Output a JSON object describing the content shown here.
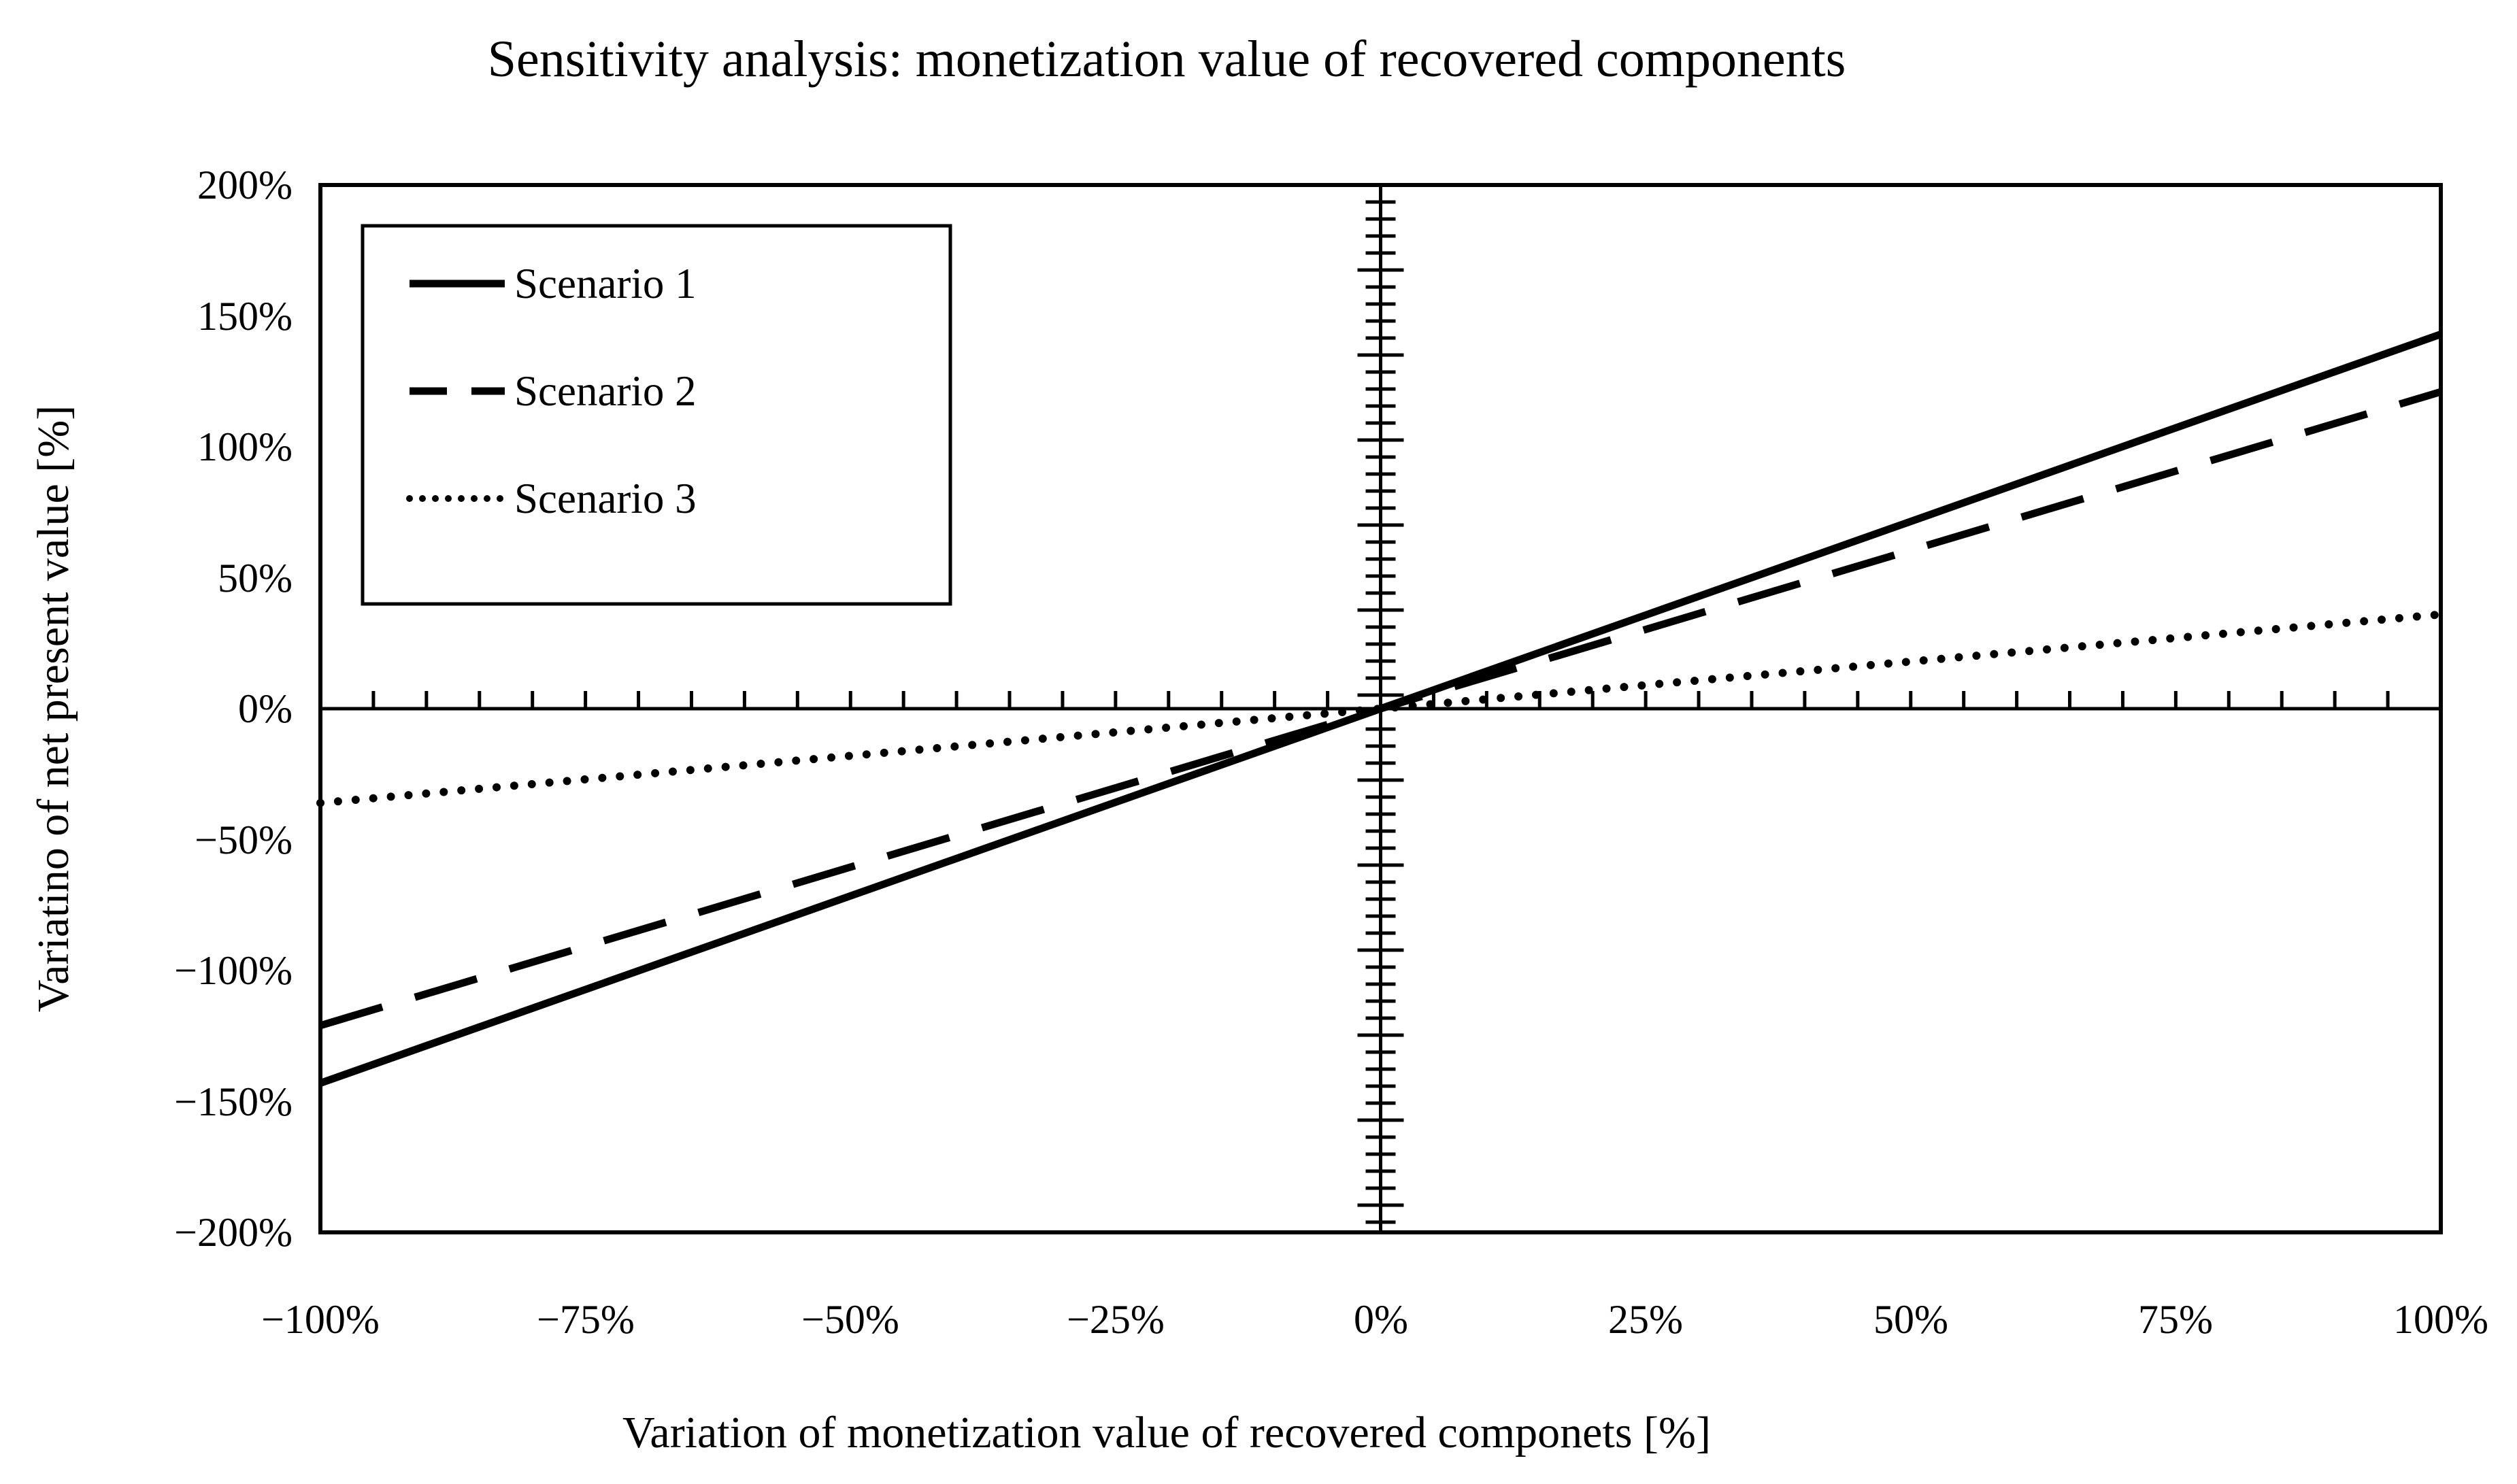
{
  "title": "Sensitivity analysis: monetization value of recovered components",
  "x_axis": {
    "label": "Variation of monetization value of recovered componets [%]",
    "tick_labels": [
      "−100%",
      "−75%",
      "−50%",
      "−25%",
      "0%",
      "25%",
      "50%",
      "75%",
      "100%"
    ],
    "min": -100,
    "max": 100,
    "major_step": 25,
    "minor_step": 5
  },
  "y_axis": {
    "label": "Variatino of net present value [%]",
    "tick_labels": [
      "200%",
      "150%",
      "100%",
      "50%",
      "0%",
      "−50%",
      "−100%",
      "−150%",
      "−200%"
    ],
    "min": -200,
    "max": 200,
    "major_step": 50
  },
  "legend": {
    "position": "upper-left",
    "items": [
      {
        "label": "Scenario 1",
        "style": "solid"
      },
      {
        "label": "Scenario 2",
        "style": "dashed"
      },
      {
        "label": "Scenario 3",
        "style": "dotted"
      }
    ]
  },
  "colors": {
    "foreground": "#000000",
    "background": "#ffffff"
  },
  "chart_data": {
    "type": "line",
    "title": "Sensitivity analysis: monetization value of recovered components",
    "xlabel": "Variation of monetization value of recovered componets [%]",
    "ylabel": "Variatino of net present value [%]",
    "xlim": [
      -100,
      100
    ],
    "ylim": [
      -200,
      200
    ],
    "x": [
      -100,
      0,
      100
    ],
    "series": [
      {
        "name": "Scenario 1",
        "line_style": "solid",
        "values": [
          -143,
          0,
          143
        ],
        "slope": 1.43
      },
      {
        "name": "Scenario 2",
        "line_style": "dashed",
        "values": [
          -121,
          0,
          121
        ],
        "slope": 1.21
      },
      {
        "name": "Scenario 3",
        "line_style": "dotted",
        "values": [
          -36,
          0,
          36
        ],
        "slope": 0.36
      }
    ],
    "grid": false,
    "legend_position": "upper-left",
    "axes_cross_at": [
      0,
      0
    ]
  }
}
